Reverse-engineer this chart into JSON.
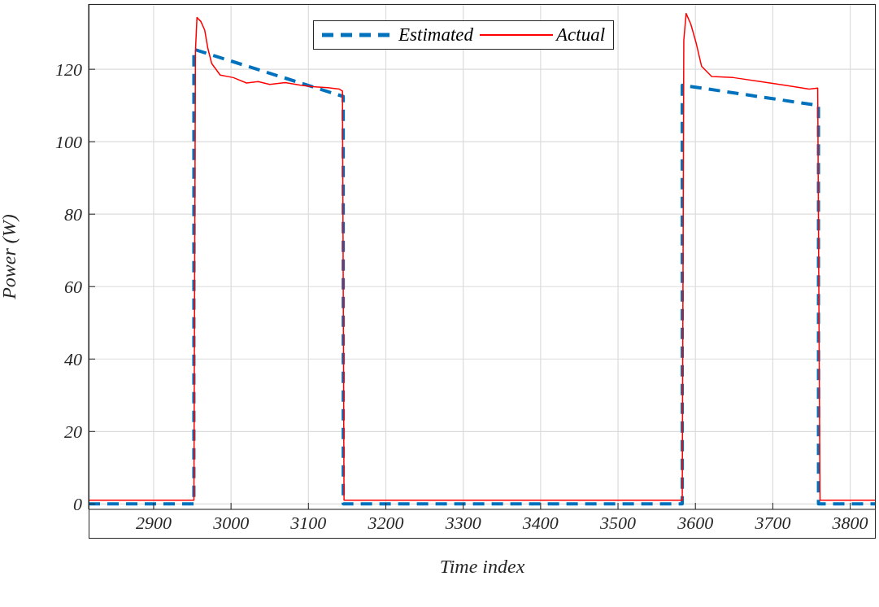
{
  "chart_data": {
    "type": "line",
    "xlabel": "Time index",
    "ylabel": "Power (W)",
    "xlim": [
      2816,
      3833
    ],
    "ylim": [
      -1.5,
      138
    ],
    "xticks": [
      2900,
      3000,
      3100,
      3200,
      3300,
      3400,
      3500,
      3600,
      3700,
      3800
    ],
    "yticks": [
      0,
      20,
      40,
      60,
      80,
      100,
      120
    ],
    "grid": true,
    "legend": "top",
    "series": [
      {
        "name": "Estimated",
        "color": "#0072bd",
        "line_style": "dashed",
        "x": [
          2816,
          2952,
          2952,
          3145,
          3145,
          3583,
          3583,
          3759,
          3759,
          3833
        ],
        "values": [
          0,
          0,
          125.5,
          112.5,
          0,
          0,
          115.6,
          110,
          0,
          0
        ]
      },
      {
        "name": "Actual",
        "color": "#ff0000",
        "line_style": "solid",
        "x": [
          2816,
          2900,
          2952,
          2954,
          2956,
          2961,
          2966,
          2970,
          2975,
          2986,
          3003,
          3020,
          3035,
          3050,
          3070,
          3090,
          3105,
          3125,
          3140,
          3144,
          3146,
          3300,
          3583,
          3585,
          3588,
          3594,
          3601,
          3608,
          3621,
          3649,
          3684,
          3719,
          3747,
          3758,
          3761,
          3833
        ],
        "values": [
          1,
          1,
          1,
          125,
          134.3,
          133.2,
          130.8,
          125.8,
          121.6,
          118.4,
          117.7,
          116.2,
          116.6,
          115.8,
          116.3,
          115.6,
          115.2,
          114.9,
          114.5,
          114,
          1,
          1,
          1,
          128,
          135.4,
          132.5,
          127.2,
          120.8,
          118,
          117.7,
          116.6,
          115.5,
          114.5,
          114.8,
          1,
          1
        ]
      }
    ]
  }
}
